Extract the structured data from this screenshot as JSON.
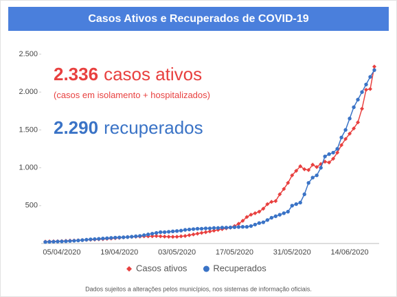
{
  "chart_data": {
    "type": "line",
    "title": "Casos Ativos e Recuperados de COVID-19",
    "annotations": [
      {
        "number": "2.336",
        "text": "casos ativos",
        "color": "#e8403f"
      },
      {
        "text": "(casos em isolamento + hospitalizados)",
        "color": "#e8403f"
      },
      {
        "number": "2.290",
        "text": "recuperados",
        "color": "#3a73c6"
      }
    ],
    "note": "Dados sujeitos a alterações pelos municípios, nos sistemas de informação oficiais.",
    "categories": [
      null,
      null,
      null,
      null,
      "05/04/2020",
      null,
      null,
      null,
      null,
      null,
      null,
      null,
      null,
      null,
      null,
      null,
      null,
      null,
      "19/04/2020",
      null,
      null,
      null,
      null,
      null,
      null,
      null,
      null,
      null,
      null,
      null,
      null,
      null,
      "03/05/2020",
      null,
      null,
      null,
      null,
      null,
      null,
      null,
      null,
      null,
      null,
      null,
      null,
      null,
      "17/05/2020",
      null,
      null,
      null,
      null,
      null,
      null,
      null,
      null,
      null,
      null,
      null,
      null,
      null,
      "31/05/2020",
      null,
      null,
      null,
      null,
      null,
      null,
      null,
      null,
      null,
      null,
      null,
      null,
      null,
      "14/06/2020",
      null,
      null,
      null,
      null,
      null,
      null
    ],
    "series": [
      {
        "name": "Casos ativos",
        "color": "#e8403f",
        "marker": "diamond",
        "values": [
          25,
          27,
          28,
          30,
          32,
          35,
          38,
          40,
          42,
          45,
          48,
          50,
          52,
          55,
          58,
          62,
          66,
          70,
          75,
          80,
          85,
          88,
          90,
          92,
          95,
          95,
          96,
          98,
          95,
          92,
          90,
          88,
          90,
          95,
          100,
          110,
          120,
          130,
          140,
          150,
          160,
          170,
          180,
          190,
          200,
          210,
          230,
          260,
          300,
          350,
          380,
          400,
          420,
          460,
          520,
          550,
          560,
          650,
          720,
          800,
          900,
          960,
          1020,
          980,
          970,
          1040,
          1010,
          1050,
          1080,
          1070,
          1120,
          1200,
          1300,
          1380,
          1450,
          1520,
          1600,
          1780,
          2030,
          2040,
          2336
        ]
      },
      {
        "name": "Recuperados",
        "color": "#3a73c6",
        "marker": "circle",
        "values": [
          20,
          22,
          24,
          26,
          28,
          30,
          33,
          36,
          40,
          45,
          50,
          55,
          58,
          62,
          66,
          70,
          74,
          78,
          80,
          82,
          85,
          90,
          95,
          100,
          110,
          120,
          130,
          140,
          150,
          150,
          155,
          160,
          165,
          170,
          180,
          185,
          190,
          195,
          195,
          200,
          200,
          205,
          205,
          210,
          210,
          212,
          215,
          218,
          220,
          220,
          230,
          250,
          270,
          280,
          310,
          340,
          360,
          380,
          400,
          420,
          500,
          520,
          540,
          650,
          800,
          870,
          900,
          1000,
          1150,
          1180,
          1200,
          1250,
          1400,
          1500,
          1650,
          1800,
          1900,
          2000,
          2100,
          2200,
          2290
        ]
      }
    ],
    "ylim": [
      0,
      2500
    ],
    "yticks": [
      500,
      {
        "value": 1000,
        "label": "1.000"
      },
      {
        "value": 1500,
        "label": "1.500"
      },
      {
        "value": 2000,
        "label": "2.000"
      },
      {
        "value": 2500,
        "label": "2.500"
      }
    ],
    "grid": false,
    "legend": "bottom"
  }
}
